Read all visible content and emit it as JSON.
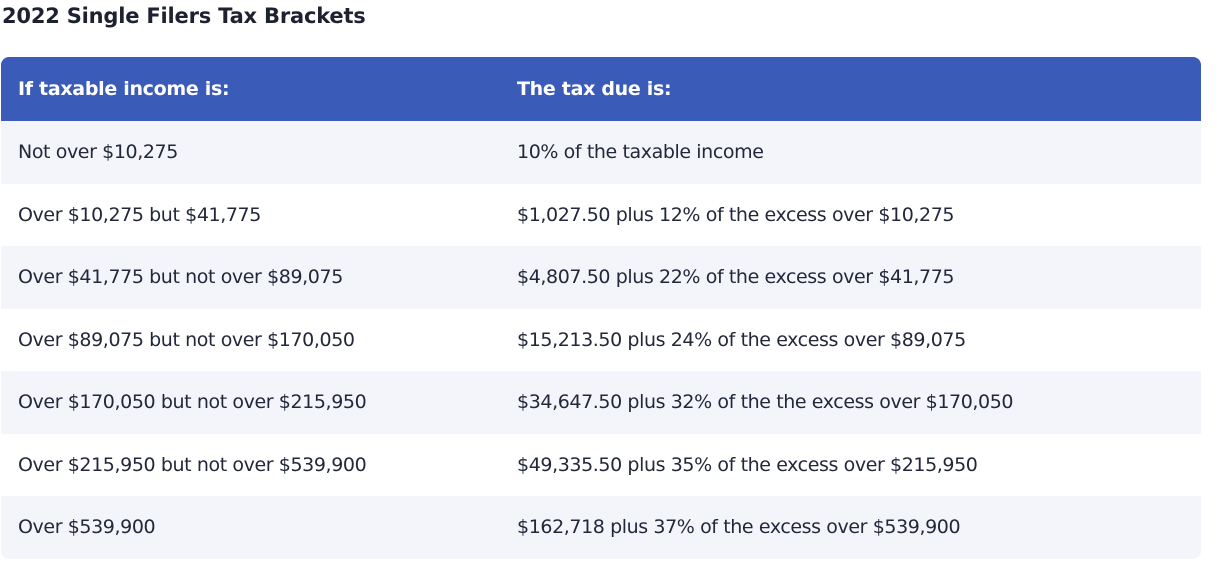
{
  "title": "2022 Single Filers Tax Brackets",
  "colors": {
    "header_bg": "#3a5bb8",
    "stripe_bg": "#f4f5fb"
  },
  "table": {
    "headers": [
      "If taxable income is:",
      "The tax due is:"
    ],
    "rows": [
      [
        "Not over $10,275",
        "10% of the taxable income"
      ],
      [
        "Over $10,275 but $41,775",
        "$1,027.50 plus 12% of the excess over $10,275"
      ],
      [
        "Over $41,775 but not over $89,075",
        "$4,807.50 plus 22% of the excess over $41,775"
      ],
      [
        "Over $89,075 but not over $170,050",
        "$15,213.50 plus 24% of the excess over $89,075"
      ],
      [
        "Over $170,050 but not over $215,950",
        "$34,647.50 plus 32% of the the excess over $170,050"
      ],
      [
        "Over $215,950 but not over $539,900",
        "$49,335.50 plus 35% of the excess over $215,950"
      ],
      [
        "Over $539,900",
        "$162,718 plus 37% of the excess over $539,900"
      ]
    ]
  }
}
